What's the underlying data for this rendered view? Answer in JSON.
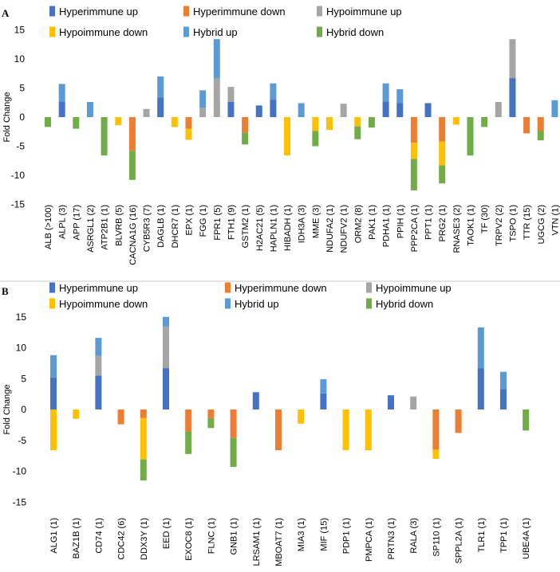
{
  "colors": {
    "hyper_up": "#4472C4",
    "hyper_down": "#ED7D31",
    "hypo_up": "#A5A5A5",
    "hypo_down": "#FFC000",
    "hybrid_up": "#5B9BD5",
    "hybrid_down": "#70AD47"
  },
  "chart_data": [
    {
      "panel": "A",
      "type": "bar",
      "stacked": true,
      "ylabel": "Fold Change",
      "ylim": [
        -15,
        15
      ],
      "yticks": [
        15,
        10,
        5,
        0,
        -5,
        -10,
        -15
      ],
      "legend": [
        "Hyperimmune up",
        "Hyperimmune down",
        "Hypoimmune up",
        "Hypoimmune down",
        "Hybrid up",
        "Hybrid down"
      ],
      "categories": [
        "ALB (>100)",
        "ALPL (3)",
        "APP (17)",
        "ASRGL1 (2)",
        "ATP2B1 (1)",
        "BLVRB (5)",
        "CACNA1G (16)",
        "CYB5R3 (7)",
        "DAGLB (1)",
        "DHCR7 (1)",
        "EPX (1)",
        "FGG (1)",
        "FPR1 (5)",
        "FTH1 (9)",
        "GSTM2 (1)",
        "H2AC21 (5)",
        "HAPLN1 (1)",
        "HIBADH (1)",
        "IDH3A (3)",
        "MME (3)",
        "NDUFA2 (1)",
        "NDUFV2 (1)",
        "ORM2 (8)",
        "PAK1 (1)",
        "PDHA1 (1)",
        "PPIH (1)",
        "PPP2CA (1)",
        "PPT1 (1)",
        "PRG2 (1)",
        "RNASE3 (2)",
        "TAOK1 (1)",
        "TF (30)",
        "TRPV2 (2)",
        "TSPO (1)",
        "TTR (15)",
        "UGCG (2)",
        "VTN (1)"
      ],
      "series": [
        {
          "name": "Hyperimmune up",
          "values": [
            0,
            2.7,
            0,
            0,
            0,
            0,
            0,
            0,
            3.4,
            0,
            0,
            0,
            0,
            2.6,
            0,
            2.0,
            3.0,
            0,
            0,
            0,
            0,
            0,
            0,
            0,
            2.7,
            2.4,
            0,
            2.4,
            0,
            0,
            0,
            0,
            0,
            6.7,
            0,
            0,
            0
          ]
        },
        {
          "name": "Hyperimmune down",
          "values": [
            0,
            0,
            0,
            0,
            0,
            0,
            -5.8,
            0,
            0,
            0,
            -2.0,
            0,
            0,
            0,
            -2.7,
            0,
            0,
            0,
            0,
            0,
            0,
            0,
            0,
            0,
            0,
            0,
            -4.4,
            0,
            -4.2,
            0,
            0,
            0,
            0,
            0,
            -2.8,
            -2.4,
            0
          ]
        },
        {
          "name": "Hypoimmune up",
          "values": [
            0,
            0,
            0,
            0,
            0,
            0,
            0,
            1.4,
            0,
            0,
            0,
            1.6,
            6.7,
            2.6,
            0,
            0,
            0,
            0,
            0,
            0,
            0,
            2.3,
            0,
            0,
            0,
            0,
            0,
            0,
            0,
            0,
            0,
            0,
            2.6,
            6.7,
            0,
            0,
            0
          ]
        },
        {
          "name": "Hypoimmune down",
          "values": [
            0,
            0,
            0,
            0,
            0,
            -1.4,
            0,
            0,
            0,
            -1.7,
            -1.9,
            0,
            0,
            0,
            0,
            0,
            0,
            -6.6,
            0,
            -2.4,
            -2.2,
            0,
            -1.6,
            0,
            0,
            0,
            -2.8,
            0,
            -4.1,
            -1.3,
            0,
            0,
            0,
            0,
            0,
            0,
            0
          ]
        },
        {
          "name": "Hybrid up",
          "values": [
            0,
            3.0,
            0,
            2.6,
            0,
            0,
            0,
            0,
            3.6,
            0,
            0,
            3.0,
            6.7,
            0,
            0,
            0,
            2.8,
            0,
            2.4,
            0,
            0,
            0,
            0,
            0,
            3.1,
            2.4,
            0,
            0,
            0,
            0,
            0,
            0,
            0,
            0,
            0,
            0,
            2.9
          ]
        },
        {
          "name": "Hybrid down",
          "values": [
            -1.7,
            0,
            -2.0,
            0,
            -6.6,
            0,
            -5.0,
            0,
            0,
            0,
            0,
            0,
            0,
            0,
            -2.0,
            0,
            0,
            0,
            0,
            -2.6,
            0,
            0,
            -2.2,
            -1.8,
            0,
            0,
            -5.4,
            0,
            -3.1,
            0,
            -6.6,
            -1.7,
            0,
            0,
            0,
            -1.6,
            0
          ]
        }
      ]
    },
    {
      "panel": "B",
      "type": "bar",
      "stacked": true,
      "ylabel": "Fold Change",
      "ylim": [
        -15,
        15
      ],
      "yticks": [
        15,
        10,
        5,
        0,
        -5,
        -10,
        -15
      ],
      "legend": [
        "Hyperimmune up",
        "Hyperimmune down",
        "Hypoimmune up",
        "Hypoimmune down",
        "Hybrid up",
        "Hybrid down"
      ],
      "categories": [
        "ALG1 (1)",
        "BAZ1B (1)",
        "CD74 (1)",
        "CDC42 (6)",
        "DDX3Y (1)",
        "EED (1)",
        "EXOC8 (1)",
        "FLNC (1)",
        "GNB1 (1)",
        "LRSAM1 (1)",
        "MBOAT7 (1)",
        "MIA3 (1)",
        "MIF (15)",
        "PDP1 (1)",
        "PMPCA (1)",
        "PRTN3 (1)",
        "RALA (3)",
        "SP110 (1)",
        "SPPL2A (1)",
        "TLR1 (1)",
        "TPP1 (1)",
        "UBE4A (1)"
      ],
      "series": [
        {
          "name": "Hyperimmune up",
          "values": [
            5.2,
            0,
            5.5,
            0,
            0,
            6.7,
            0,
            0,
            0,
            2.8,
            0,
            0,
            2.6,
            0,
            0,
            2.3,
            0,
            0,
            0,
            6.7,
            3.3,
            0
          ]
        },
        {
          "name": "Hyperimmune down",
          "values": [
            0,
            0,
            0,
            -2.4,
            -1.4,
            0,
            -3.6,
            -1.4,
            -4.6,
            0,
            -6.6,
            0,
            0,
            0,
            0,
            0,
            0,
            -6.5,
            -3.8,
            0,
            0,
            0
          ]
        },
        {
          "name": "Hypoimmune up",
          "values": [
            0,
            0,
            3.2,
            0,
            0,
            6.7,
            0,
            0,
            0,
            0,
            0,
            0,
            0,
            0,
            0,
            0,
            2.1,
            0,
            0,
            0,
            0,
            0
          ]
        },
        {
          "name": "Hypoimmune down",
          "values": [
            -6.6,
            -1.5,
            0,
            0,
            -6.7,
            0,
            0,
            0,
            0,
            0,
            0,
            -2.3,
            0,
            -6.6,
            -6.6,
            0,
            0,
            -1.5,
            0,
            0,
            0,
            0
          ]
        },
        {
          "name": "Hybrid up",
          "values": [
            3.6,
            0,
            2.9,
            0,
            0,
            1.6,
            0,
            0,
            0,
            0,
            0,
            0,
            2.3,
            0,
            0,
            0,
            0,
            0,
            0,
            6.6,
            2.8,
            0
          ]
        },
        {
          "name": "Hybrid down",
          "values": [
            0,
            0,
            0,
            0,
            -3.4,
            0,
            -3.6,
            -1.6,
            -4.7,
            0,
            0,
            0,
            0,
            0,
            0,
            0,
            0,
            0,
            0,
            0,
            0,
            -3.4
          ]
        }
      ]
    }
  ]
}
